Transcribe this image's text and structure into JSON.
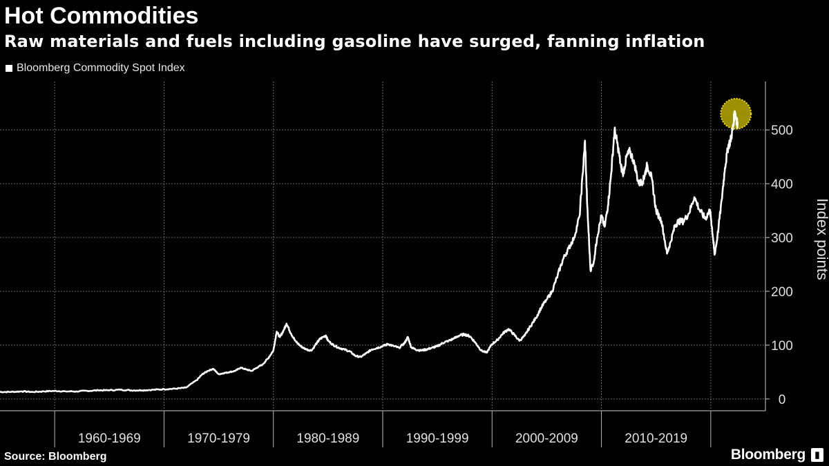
{
  "header": {
    "title": "Hot Commodities",
    "subtitle": "Raw materials and fuels including gasoline have surged, fanning inflation"
  },
  "footer": {
    "source": "Source: Bloomberg",
    "brand": "Bloomberg"
  },
  "colors": {
    "background": "#000000",
    "line": "#ffffff",
    "highlight": "#c9b800",
    "grid": "#6a6a6a"
  },
  "chart_data": {
    "type": "line",
    "legend_position": "top-left",
    "grid": true,
    "ylabel": "Index points",
    "ylim": [
      -22,
      590
    ],
    "xlim": [
      1955.0,
      2025.0
    ],
    "y_ticks": [
      0,
      100,
      200,
      300,
      400,
      500
    ],
    "decades": [
      "1960-1969",
      "1970-1979",
      "1980-1989",
      "1990-1999",
      "2000-2009",
      "2010-2019"
    ],
    "decade_bounds": [
      1960,
      1970,
      1980,
      1990,
      2000,
      2010,
      2020
    ],
    "series": [
      {
        "name": "Bloomberg Commodity Spot Index",
        "points": [
          [
            1955.0,
            13
          ],
          [
            1956.0,
            13
          ],
          [
            1957.0,
            14
          ],
          [
            1958.0,
            13
          ],
          [
            1959.0,
            14
          ],
          [
            1960.0,
            15
          ],
          [
            1961.0,
            14
          ],
          [
            1962.0,
            14
          ],
          [
            1963.0,
            15
          ],
          [
            1964.0,
            16
          ],
          [
            1965.0,
            16
          ],
          [
            1966.0,
            17
          ],
          [
            1967.0,
            16
          ],
          [
            1968.0,
            16
          ],
          [
            1969.0,
            17
          ],
          [
            1970.0,
            18
          ],
          [
            1971.0,
            19
          ],
          [
            1972.0,
            21
          ],
          [
            1973.0,
            35
          ],
          [
            1973.5,
            46
          ],
          [
            1974.0,
            52
          ],
          [
            1974.5,
            56
          ],
          [
            1975.0,
            46
          ],
          [
            1975.5,
            48
          ],
          [
            1976.0,
            50
          ],
          [
            1976.5,
            52
          ],
          [
            1977.0,
            58
          ],
          [
            1977.5,
            55
          ],
          [
            1978.0,
            52
          ],
          [
            1978.5,
            58
          ],
          [
            1979.0,
            64
          ],
          [
            1979.5,
            75
          ],
          [
            1980.0,
            90
          ],
          [
            1980.3,
            125
          ],
          [
            1980.6,
            115
          ],
          [
            1981.0,
            130
          ],
          [
            1981.2,
            140
          ],
          [
            1981.6,
            122
          ],
          [
            1982.0,
            108
          ],
          [
            1982.5,
            98
          ],
          [
            1983.0,
            92
          ],
          [
            1983.5,
            90
          ],
          [
            1984.0,
            105
          ],
          [
            1984.3,
            112
          ],
          [
            1984.8,
            118
          ],
          [
            1985.0,
            108
          ],
          [
            1985.5,
            100
          ],
          [
            1986.0,
            95
          ],
          [
            1986.5,
            92
          ],
          [
            1987.0,
            88
          ],
          [
            1987.5,
            80
          ],
          [
            1988.0,
            78
          ],
          [
            1988.5,
            85
          ],
          [
            1989.0,
            92
          ],
          [
            1989.5,
            95
          ],
          [
            1990.0,
            98
          ],
          [
            1990.5,
            102
          ],
          [
            1991.0,
            98
          ],
          [
            1991.5,
            95
          ],
          [
            1992.0,
            104
          ],
          [
            1992.3,
            115
          ],
          [
            1992.6,
            96
          ],
          [
            1993.0,
            92
          ],
          [
            1993.5,
            90
          ],
          [
            1994.0,
            92
          ],
          [
            1994.5,
            95
          ],
          [
            1995.0,
            98
          ],
          [
            1995.5,
            104
          ],
          [
            1996.0,
            108
          ],
          [
            1996.5,
            112
          ],
          [
            1997.0,
            118
          ],
          [
            1997.5,
            120
          ],
          [
            1998.0,
            116
          ],
          [
            1998.5,
            104
          ],
          [
            1999.0,
            90
          ],
          [
            1999.5,
            86
          ],
          [
            2000.0,
            102
          ],
          [
            2000.5,
            110
          ],
          [
            2001.0,
            122
          ],
          [
            2001.5,
            130
          ],
          [
            2002.0,
            120
          ],
          [
            2002.5,
            108
          ],
          [
            2003.0,
            118
          ],
          [
            2003.5,
            135
          ],
          [
            2004.0,
            150
          ],
          [
            2004.5,
            170
          ],
          [
            2005.0,
            185
          ],
          [
            2005.5,
            200
          ],
          [
            2006.0,
            230
          ],
          [
            2006.5,
            260
          ],
          [
            2007.0,
            280
          ],
          [
            2007.5,
            300
          ],
          [
            2008.0,
            340
          ],
          [
            2008.3,
            420
          ],
          [
            2008.5,
            480
          ],
          [
            2008.7,
            360
          ],
          [
            2009.0,
            240
          ],
          [
            2009.3,
            255
          ],
          [
            2009.6,
            300
          ],
          [
            2010.0,
            340
          ],
          [
            2010.3,
            320
          ],
          [
            2010.6,
            360
          ],
          [
            2010.9,
            420
          ],
          [
            2011.2,
            500
          ],
          [
            2011.5,
            470
          ],
          [
            2011.8,
            430
          ],
          [
            2012.0,
            420
          ],
          [
            2012.3,
            450
          ],
          [
            2012.6,
            460
          ],
          [
            2013.0,
            440
          ],
          [
            2013.4,
            400
          ],
          [
            2013.8,
            405
          ],
          [
            2014.0,
            420
          ],
          [
            2014.2,
            435
          ],
          [
            2014.6,
            410
          ],
          [
            2015.0,
            350
          ],
          [
            2015.5,
            330
          ],
          [
            2016.0,
            270
          ],
          [
            2016.3,
            290
          ],
          [
            2016.7,
            320
          ],
          [
            2017.0,
            330
          ],
          [
            2017.5,
            330
          ],
          [
            2018.0,
            345
          ],
          [
            2018.5,
            375
          ],
          [
            2019.0,
            350
          ],
          [
            2019.5,
            335
          ],
          [
            2019.9,
            350
          ],
          [
            2020.0,
            340
          ],
          [
            2020.2,
            300
          ],
          [
            2020.35,
            268
          ],
          [
            2020.6,
            300
          ],
          [
            2021.0,
            370
          ],
          [
            2021.3,
            430
          ],
          [
            2021.6,
            470
          ],
          [
            2021.8,
            480
          ],
          [
            2022.0,
            500
          ],
          [
            2022.2,
            535
          ],
          [
            2022.35,
            520
          ],
          [
            2022.45,
            510
          ]
        ]
      }
    ],
    "highlight": {
      "x": 2022.3,
      "y": 530
    }
  }
}
